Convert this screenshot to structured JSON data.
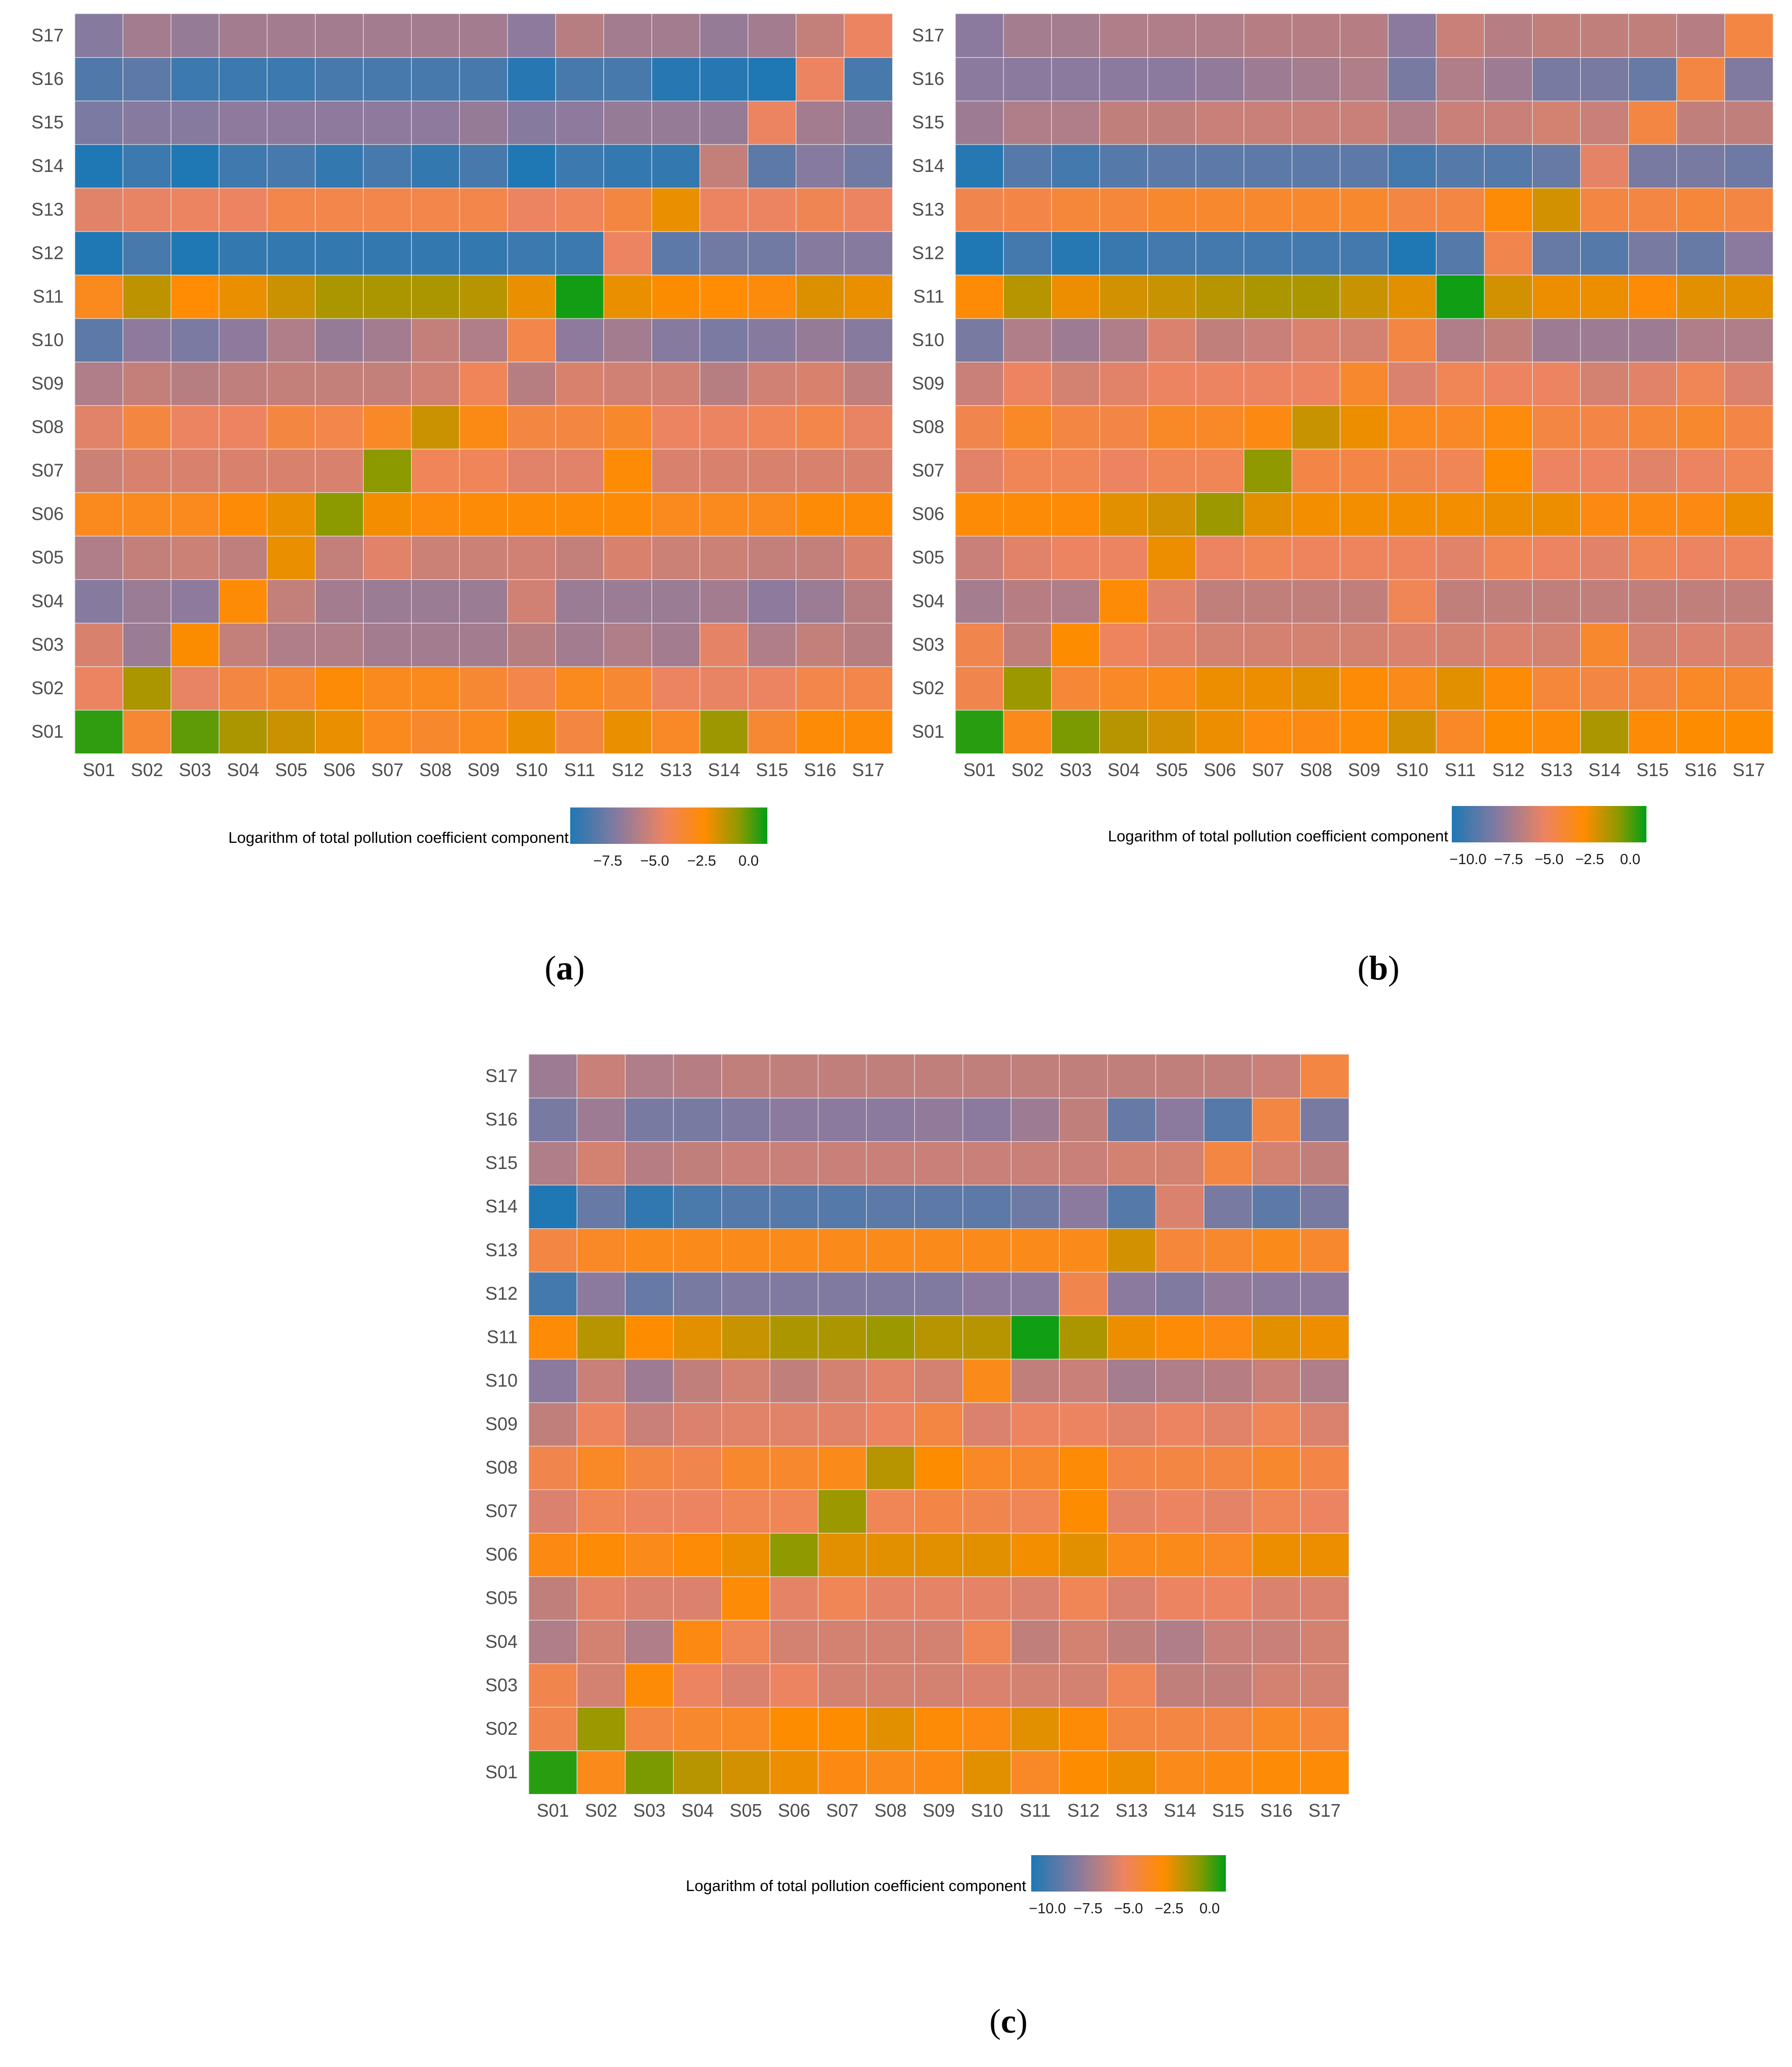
{
  "colors": {
    "low": "#1f78b4",
    "mid_low": "#e6866f",
    "mid": "#ff8c00",
    "high": "#009e17",
    "grid": "#e8e8e8",
    "tick_text": "#4d4d4d"
  },
  "chart_data": [
    {
      "type": "heatmap",
      "panel": "a",
      "label": "a",
      "x_categories": [
        "S01",
        "S02",
        "S03",
        "S04",
        "S05",
        "S06",
        "S07",
        "S08",
        "S09",
        "S10",
        "S11",
        "S12",
        "S13",
        "S14",
        "S15",
        "S16",
        "S17"
      ],
      "y_categories": [
        "S01",
        "S02",
        "S03",
        "S04",
        "S05",
        "S06",
        "S07",
        "S08",
        "S09",
        "S10",
        "S11",
        "S12",
        "S13",
        "S14",
        "S15",
        "S16",
        "S17"
      ],
      "colorbar_title": "Logarithm of total pollution coefficient component",
      "colorbar_ticks": [
        "−7.5",
        "−5.0",
        "−2.5",
        "0.0"
      ],
      "colorbar_tick_values": [
        -7.5,
        -5.0,
        -2.5,
        0.0
      ],
      "zlim": [
        -9.5,
        1.0
      ],
      "values": [
        [
          0.5,
          -3.5,
          0.0,
          -1.0,
          -1.5,
          -2.0,
          -3.0,
          -3.3,
          -3.0,
          -2.0,
          -3.8,
          -2.0,
          -3.2,
          -0.8,
          -3.5,
          -2.5,
          -2.5
        ],
        [
          -4.5,
          -1.0,
          -4.6,
          -3.8,
          -3.5,
          -2.5,
          -3.0,
          -3.0,
          -3.5,
          -4.0,
          -3.0,
          -3.5,
          -4.5,
          -4.6,
          -4.5,
          -4.0,
          -4.0
        ],
        [
          -5.0,
          -6.5,
          -2.3,
          -5.5,
          -6.0,
          -6.0,
          -6.3,
          -6.3,
          -6.3,
          -5.8,
          -6.3,
          -6.0,
          -6.3,
          -4.7,
          -6.0,
          -5.5,
          -5.8
        ],
        [
          -7.0,
          -6.5,
          -6.8,
          -2.5,
          -5.5,
          -6.3,
          -6.5,
          -6.5,
          -6.5,
          -5.2,
          -6.5,
          -6.5,
          -6.5,
          -6.3,
          -6.8,
          -6.5,
          -5.8
        ],
        [
          -6.0,
          -5.5,
          -5.3,
          -5.6,
          -2.0,
          -5.5,
          -4.8,
          -5.3,
          -5.3,
          -5.2,
          -5.5,
          -5.0,
          -5.3,
          -5.3,
          -5.5,
          -5.5,
          -5.0
        ],
        [
          -3.0,
          -3.0,
          -3.0,
          -2.5,
          -2.0,
          -0.5,
          -2.2,
          -2.6,
          -2.5,
          -2.5,
          -2.5,
          -2.5,
          -3.0,
          -3.0,
          -3.0,
          -2.5,
          -2.5
        ],
        [
          -5.3,
          -5.0,
          -5.0,
          -5.0,
          -5.0,
          -5.0,
          -0.5,
          -4.3,
          -4.3,
          -4.8,
          -4.8,
          -2.5,
          -5.0,
          -5.0,
          -5.0,
          -5.0,
          -5.0
        ],
        [
          -4.8,
          -3.8,
          -4.5,
          -4.5,
          -3.8,
          -4.0,
          -3.2,
          -1.5,
          -2.8,
          -3.8,
          -3.8,
          -3.3,
          -4.5,
          -4.5,
          -4.3,
          -4.0,
          -4.6
        ],
        [
          -6.0,
          -5.5,
          -5.8,
          -5.6,
          -5.5,
          -5.5,
          -5.5,
          -5.2,
          -4.3,
          -5.8,
          -5.0,
          -5.2,
          -5.2,
          -5.8,
          -5.2,
          -5.0,
          -5.6
        ],
        [
          -8.0,
          -6.8,
          -7.3,
          -6.8,
          -6.0,
          -6.6,
          -6.3,
          -5.5,
          -6.0,
          -4.0,
          -6.8,
          -6.3,
          -7.0,
          -7.3,
          -7.0,
          -6.6,
          -7.0
        ],
        [
          -3.0,
          -1.3,
          -2.4,
          -2.0,
          -1.5,
          -1.0,
          -1.0,
          -1.0,
          -1.2,
          -2.0,
          0.8,
          -2.0,
          -2.3,
          -2.4,
          -2.6,
          -1.8,
          -2.0
        ],
        [
          -9.5,
          -8.5,
          -9.5,
          -9.0,
          -9.0,
          -9.0,
          -9.0,
          -9.0,
          -9.0,
          -8.8,
          -8.8,
          -4.5,
          -8.0,
          -7.5,
          -7.5,
          -7.0,
          -7.0
        ],
        [
          -4.8,
          -4.6,
          -4.5,
          -4.5,
          -4.0,
          -4.0,
          -4.0,
          -4.0,
          -4.0,
          -4.5,
          -4.3,
          -3.8,
          -2.0,
          -4.5,
          -4.5,
          -4.2,
          -4.5
        ],
        [
          -10.2,
          -8.8,
          -9.8,
          -8.7,
          -8.5,
          -9.0,
          -8.5,
          -9.0,
          -8.5,
          -9.5,
          -8.8,
          -9.0,
          -9.0,
          -5.5,
          -8.0,
          -7.0,
          -7.5
        ],
        [
          -7.3,
          -7.0,
          -7.0,
          -6.8,
          -6.8,
          -6.8,
          -6.8,
          -6.8,
          -6.6,
          -7.0,
          -6.8,
          -6.6,
          -6.6,
          -6.6,
          -4.5,
          -6.3,
          -6.6
        ],
        [
          -8.3,
          -8.0,
          -8.8,
          -8.8,
          -8.8,
          -8.5,
          -8.5,
          -8.5,
          -8.5,
          -9.3,
          -8.5,
          -8.5,
          -9.3,
          -9.3,
          -10.0,
          -4.5,
          -8.5
        ],
        [
          -7.0,
          -6.3,
          -6.6,
          -6.3,
          -6.3,
          -6.3,
          -6.3,
          -6.3,
          -6.3,
          -6.8,
          -5.8,
          -6.3,
          -6.3,
          -6.6,
          -6.3,
          -5.5,
          -4.5
        ]
      ]
    },
    {
      "type": "heatmap",
      "panel": "b",
      "label": "b",
      "x_categories": [
        "S01",
        "S02",
        "S03",
        "S04",
        "S05",
        "S06",
        "S07",
        "S08",
        "S09",
        "S10",
        "S11",
        "S12",
        "S13",
        "S14",
        "S15",
        "S16",
        "S17"
      ],
      "y_categories": [
        "S01",
        "S02",
        "S03",
        "S04",
        "S05",
        "S06",
        "S07",
        "S08",
        "S09",
        "S10",
        "S11",
        "S12",
        "S13",
        "S14",
        "S15",
        "S16",
        "S17"
      ],
      "colorbar_title": "Logarithm of total pollution coefficient component",
      "colorbar_ticks": [
        "−10.0",
        "−7.5",
        "−5.0",
        "−2.5",
        "0.0"
      ],
      "colorbar_tick_values": [
        -10.0,
        -7.5,
        -5.0,
        -2.5,
        0.0
      ],
      "zlim": [
        -11.0,
        1.0
      ],
      "values": [
        [
          0.5,
          -3.5,
          -0.5,
          -1.5,
          -2.0,
          -2.5,
          -3.2,
          -3.3,
          -3.0,
          -2.0,
          -3.8,
          -2.8,
          -3.0,
          -1.3,
          -3.0,
          -2.8,
          -2.8
        ],
        [
          -4.8,
          -1.0,
          -4.2,
          -3.8,
          -3.5,
          -2.5,
          -2.5,
          -2.3,
          -3.0,
          -3.5,
          -2.3,
          -3.0,
          -4.3,
          -4.5,
          -4.5,
          -3.8,
          -4.0
        ],
        [
          -4.8,
          -6.5,
          -2.8,
          -5.2,
          -5.6,
          -6.0,
          -6.0,
          -6.0,
          -6.0,
          -5.8,
          -6.0,
          -5.8,
          -6.0,
          -4.0,
          -6.0,
          -5.8,
          -5.8
        ],
        [
          -7.3,
          -6.8,
          -7.0,
          -3.0,
          -5.6,
          -6.5,
          -6.5,
          -6.5,
          -6.5,
          -5.0,
          -6.5,
          -6.5,
          -6.5,
          -6.5,
          -6.5,
          -6.5,
          -6.5
        ],
        [
          -6.3,
          -5.6,
          -5.3,
          -5.3,
          -2.5,
          -5.3,
          -5.0,
          -5.2,
          -5.2,
          -5.2,
          -5.6,
          -5.0,
          -5.3,
          -5.6,
          -5.0,
          -5.3,
          -5.2
        ],
        [
          -3.0,
          -3.0,
          -3.0,
          -2.3,
          -2.0,
          -1.0,
          -2.3,
          -2.6,
          -2.6,
          -2.6,
          -2.6,
          -2.5,
          -2.5,
          -3.3,
          -3.3,
          -3.3,
          -2.5
        ],
        [
          -5.6,
          -5.0,
          -5.0,
          -5.3,
          -5.0,
          -5.0,
          -0.8,
          -4.6,
          -4.6,
          -4.8,
          -5.0,
          -2.8,
          -5.3,
          -5.3,
          -5.6,
          -5.3,
          -5.0
        ],
        [
          -4.8,
          -3.8,
          -4.5,
          -4.6,
          -3.8,
          -3.8,
          -3.3,
          -1.8,
          -2.5,
          -3.6,
          -3.8,
          -3.2,
          -4.5,
          -4.6,
          -4.3,
          -4.0,
          -4.6
        ],
        [
          -6.3,
          -5.3,
          -6.0,
          -5.6,
          -5.3,
          -5.3,
          -5.3,
          -5.3,
          -4.0,
          -5.8,
          -5.0,
          -5.3,
          -5.3,
          -6.0,
          -5.6,
          -5.0,
          -5.8
        ],
        [
          -8.5,
          -7.0,
          -7.5,
          -7.0,
          -5.8,
          -6.5,
          -6.3,
          -5.8,
          -6.0,
          -4.5,
          -7.0,
          -6.5,
          -7.5,
          -7.5,
          -7.5,
          -7.0,
          -7.0
        ],
        [
          -3.0,
          -1.5,
          -2.5,
          -2.0,
          -1.8,
          -1.5,
          -1.3,
          -1.3,
          -1.8,
          -2.3,
          0.8,
          -2.0,
          -2.5,
          -2.5,
          -3.0,
          -2.3,
          -2.3
        ],
        [
          -11.0,
          -10.0,
          -10.8,
          -10.3,
          -10.0,
          -10.0,
          -10.0,
          -10.0,
          -10.0,
          -11.3,
          -9.5,
          -4.8,
          -9.0,
          -9.5,
          -8.5,
          -9.0,
          -8.0
        ],
        [
          -4.8,
          -4.6,
          -4.3,
          -4.3,
          -4.0,
          -4.0,
          -4.0,
          -4.0,
          -4.0,
          -4.5,
          -4.5,
          -3.0,
          -2.0,
          -4.5,
          -4.5,
          -4.3,
          -4.5
        ],
        [
          -10.8,
          -9.5,
          -10.0,
          -9.5,
          -9.3,
          -9.3,
          -9.3,
          -9.3,
          -9.3,
          -10.0,
          -9.5,
          -9.5,
          -9.0,
          -5.5,
          -8.5,
          -8.5,
          -8.8
        ],
        [
          -7.5,
          -7.0,
          -7.0,
          -6.5,
          -6.5,
          -6.3,
          -6.3,
          -6.3,
          -6.3,
          -7.0,
          -6.3,
          -6.3,
          -6.0,
          -6.3,
          -4.5,
          -6.5,
          -6.5
        ],
        [
          -8.0,
          -8.0,
          -8.0,
          -8.0,
          -8.0,
          -7.8,
          -7.5,
          -7.3,
          -7.0,
          -8.5,
          -7.0,
          -7.5,
          -8.5,
          -8.5,
          -9.0,
          -4.5,
          -8.3
        ],
        [
          -8.0,
          -7.3,
          -7.3,
          -7.0,
          -7.0,
          -7.0,
          -6.8,
          -6.8,
          -6.8,
          -8.0,
          -6.3,
          -6.8,
          -6.5,
          -6.5,
          -6.5,
          -6.8,
          -4.5
        ]
      ]
    },
    {
      "type": "heatmap",
      "panel": "c",
      "label": "c",
      "x_categories": [
        "S01",
        "S02",
        "S03",
        "S04",
        "S05",
        "S06",
        "S07",
        "S08",
        "S09",
        "S10",
        "S11",
        "S12",
        "S13",
        "S14",
        "S15",
        "S16",
        "S17"
      ],
      "y_categories": [
        "S01",
        "S02",
        "S03",
        "S04",
        "S05",
        "S06",
        "S07",
        "S08",
        "S09",
        "S10",
        "S11",
        "S12",
        "S13",
        "S14",
        "S15",
        "S16",
        "S17"
      ],
      "colorbar_title": "Logarithm of total pollution coefficient component",
      "colorbar_ticks": [
        "−10.0",
        "−7.5",
        "−5.0",
        "−2.5",
        "0.0"
      ],
      "colorbar_tick_values": [
        -10.0,
        -7.5,
        -5.0,
        -2.5,
        0.0
      ],
      "zlim": [
        -11.0,
        1.0
      ],
      "values": [
        [
          0.5,
          -3.5,
          -0.5,
          -1.5,
          -2.0,
          -2.5,
          -3.3,
          -3.5,
          -3.3,
          -2.3,
          -3.8,
          -2.8,
          -2.5,
          -3.5,
          -3.3,
          -3.0,
          -3.0
        ],
        [
          -4.8,
          -1.0,
          -4.5,
          -4.0,
          -3.8,
          -2.8,
          -2.8,
          -2.3,
          -3.0,
          -3.3,
          -2.3,
          -3.0,
          -4.5,
          -4.5,
          -4.5,
          -3.8,
          -4.3
        ],
        [
          -4.8,
          -6.0,
          -3.0,
          -5.3,
          -5.8,
          -5.3,
          -6.0,
          -6.0,
          -6.0,
          -5.8,
          -6.0,
          -6.0,
          -5.0,
          -6.5,
          -6.5,
          -6.0,
          -6.0
        ],
        [
          -7.0,
          -6.0,
          -7.0,
          -3.3,
          -5.0,
          -6.0,
          -6.0,
          -6.0,
          -6.0,
          -5.0,
          -6.5,
          -6.0,
          -6.5,
          -7.0,
          -6.3,
          -6.3,
          -6.0
        ],
        [
          -6.5,
          -5.5,
          -5.8,
          -5.8,
          -3.0,
          -5.5,
          -5.0,
          -5.5,
          -5.5,
          -5.5,
          -5.8,
          -5.0,
          -5.8,
          -5.3,
          -5.3,
          -5.8,
          -5.8
        ],
        [
          -3.3,
          -3.0,
          -3.5,
          -3.0,
          -2.5,
          -0.8,
          -2.3,
          -2.3,
          -2.3,
          -2.3,
          -2.6,
          -2.3,
          -3.5,
          -3.5,
          -3.8,
          -2.5,
          -2.5
        ],
        [
          -5.8,
          -5.0,
          -5.3,
          -5.3,
          -5.0,
          -5.0,
          -1.0,
          -5.0,
          -4.6,
          -4.8,
          -5.0,
          -2.8,
          -5.5,
          -5.3,
          -5.5,
          -5.0,
          -5.3
        ],
        [
          -4.8,
          -3.8,
          -4.5,
          -4.8,
          -4.0,
          -4.0,
          -3.5,
          -1.5,
          -2.8,
          -3.8,
          -4.0,
          -3.0,
          -4.6,
          -4.5,
          -4.5,
          -4.0,
          -4.6
        ],
        [
          -6.5,
          -5.2,
          -6.3,
          -5.8,
          -5.6,
          -5.6,
          -5.6,
          -5.3,
          -4.5,
          -5.8,
          -5.3,
          -5.3,
          -5.6,
          -5.3,
          -5.6,
          -5.0,
          -5.8
        ],
        [
          -8.0,
          -6.3,
          -7.5,
          -6.5,
          -6.0,
          -6.5,
          -6.0,
          -5.6,
          -6.0,
          -3.5,
          -6.5,
          -6.3,
          -7.3,
          -7.0,
          -6.8,
          -6.3,
          -7.0
        ],
        [
          -3.0,
          -1.5,
          -2.8,
          -2.3,
          -1.8,
          -1.3,
          -1.3,
          -1.0,
          -1.5,
          -1.5,
          0.8,
          -1.3,
          -2.5,
          -3.0,
          -3.3,
          -2.3,
          -2.5
        ],
        [
          -10.0,
          -8.0,
          -9.0,
          -8.5,
          -8.3,
          -8.3,
          -8.3,
          -8.3,
          -8.3,
          -8.0,
          -8.0,
          -4.8,
          -8.0,
          -8.3,
          -7.8,
          -8.0,
          -8.0
        ],
        [
          -4.5,
          -3.8,
          -3.5,
          -3.5,
          -3.5,
          -3.5,
          -3.5,
          -3.5,
          -3.5,
          -3.5,
          -3.5,
          -3.5,
          -2.0,
          -4.3,
          -4.0,
          -3.5,
          -4.0
        ],
        [
          -11.0,
          -9.0,
          -10.5,
          -9.8,
          -9.5,
          -9.5,
          -9.5,
          -9.3,
          -9.3,
          -9.3,
          -8.8,
          -8.0,
          -9.5,
          -5.8,
          -8.5,
          -9.3,
          -8.5
        ],
        [
          -7.0,
          -6.0,
          -6.8,
          -6.5,
          -6.3,
          -6.3,
          -6.3,
          -6.3,
          -6.3,
          -6.3,
          -6.3,
          -6.3,
          -6.0,
          -6.0,
          -4.5,
          -6.0,
          -6.5
        ],
        [
          -8.5,
          -7.5,
          -8.5,
          -8.5,
          -8.3,
          -8.0,
          -8.0,
          -8.0,
          -7.8,
          -8.0,
          -7.5,
          -6.5,
          -9.0,
          -8.0,
          -9.5,
          -4.5,
          -8.5
        ],
        [
          -7.5,
          -6.3,
          -7.0,
          -6.8,
          -6.5,
          -6.5,
          -6.5,
          -6.5,
          -6.5,
          -6.5,
          -6.5,
          -6.5,
          -6.5,
          -6.5,
          -6.5,
          -6.3,
          -4.5
        ]
      ]
    }
  ]
}
